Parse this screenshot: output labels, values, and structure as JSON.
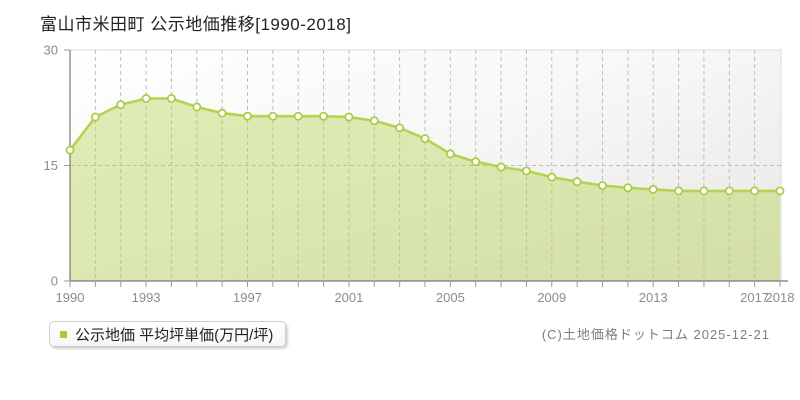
{
  "page": {
    "title": "富山市米田町 公示地価推移[1990-2018]",
    "copyright": "(C)土地価格ドットコム 2025-12-21"
  },
  "legend": {
    "label": "公示地価 平均坪単価(万円/坪)",
    "swatch_color": "#a6cc35"
  },
  "chart_data": {
    "type": "area",
    "title": "富山市米田町 公示地価推移[1990-2018]",
    "x": [
      1990,
      1991,
      1992,
      1993,
      1994,
      1995,
      1996,
      1997,
      1998,
      1999,
      2000,
      2001,
      2002,
      2003,
      2004,
      2005,
      2006,
      2007,
      2008,
      2009,
      2010,
      2011,
      2012,
      2013,
      2014,
      2015,
      2016,
      2017,
      2018
    ],
    "series": [
      {
        "name": "公示地価 平均坪単価(万円/坪)",
        "values": [
          17.0,
          21.3,
          22.9,
          23.7,
          23.7,
          22.6,
          21.8,
          21.4,
          21.4,
          21.4,
          21.4,
          21.3,
          20.8,
          19.9,
          18.5,
          16.5,
          15.5,
          14.8,
          14.3,
          13.5,
          12.9,
          12.4,
          12.1,
          11.9,
          11.7,
          11.7,
          11.7,
          11.7,
          11.7
        ]
      }
    ],
    "ylabel": "",
    "xlabel": "",
    "ylim": [
      0,
      30
    ],
    "yticks": [
      0,
      15,
      30
    ],
    "xtick_labels": [
      1990,
      1993,
      1997,
      2001,
      2005,
      2009,
      2013,
      2017,
      2018
    ],
    "grid": true,
    "grid_style": "dashed",
    "legend_position": "bottom-left",
    "colors": {
      "line": "#b5d352",
      "fill": "rgba(182,212,80,0.42)",
      "marker_fill": "#ffffff",
      "marker_stroke": "#a9cc42",
      "gridline": "#bdbdbd",
      "axis": "#777777",
      "tick": "#999999",
      "tick_label": "#8c8c8c",
      "plot_border": "#dcdcdc",
      "plot_bg_from": "#ffffff",
      "plot_bg_to": "#e7e6e4"
    }
  }
}
